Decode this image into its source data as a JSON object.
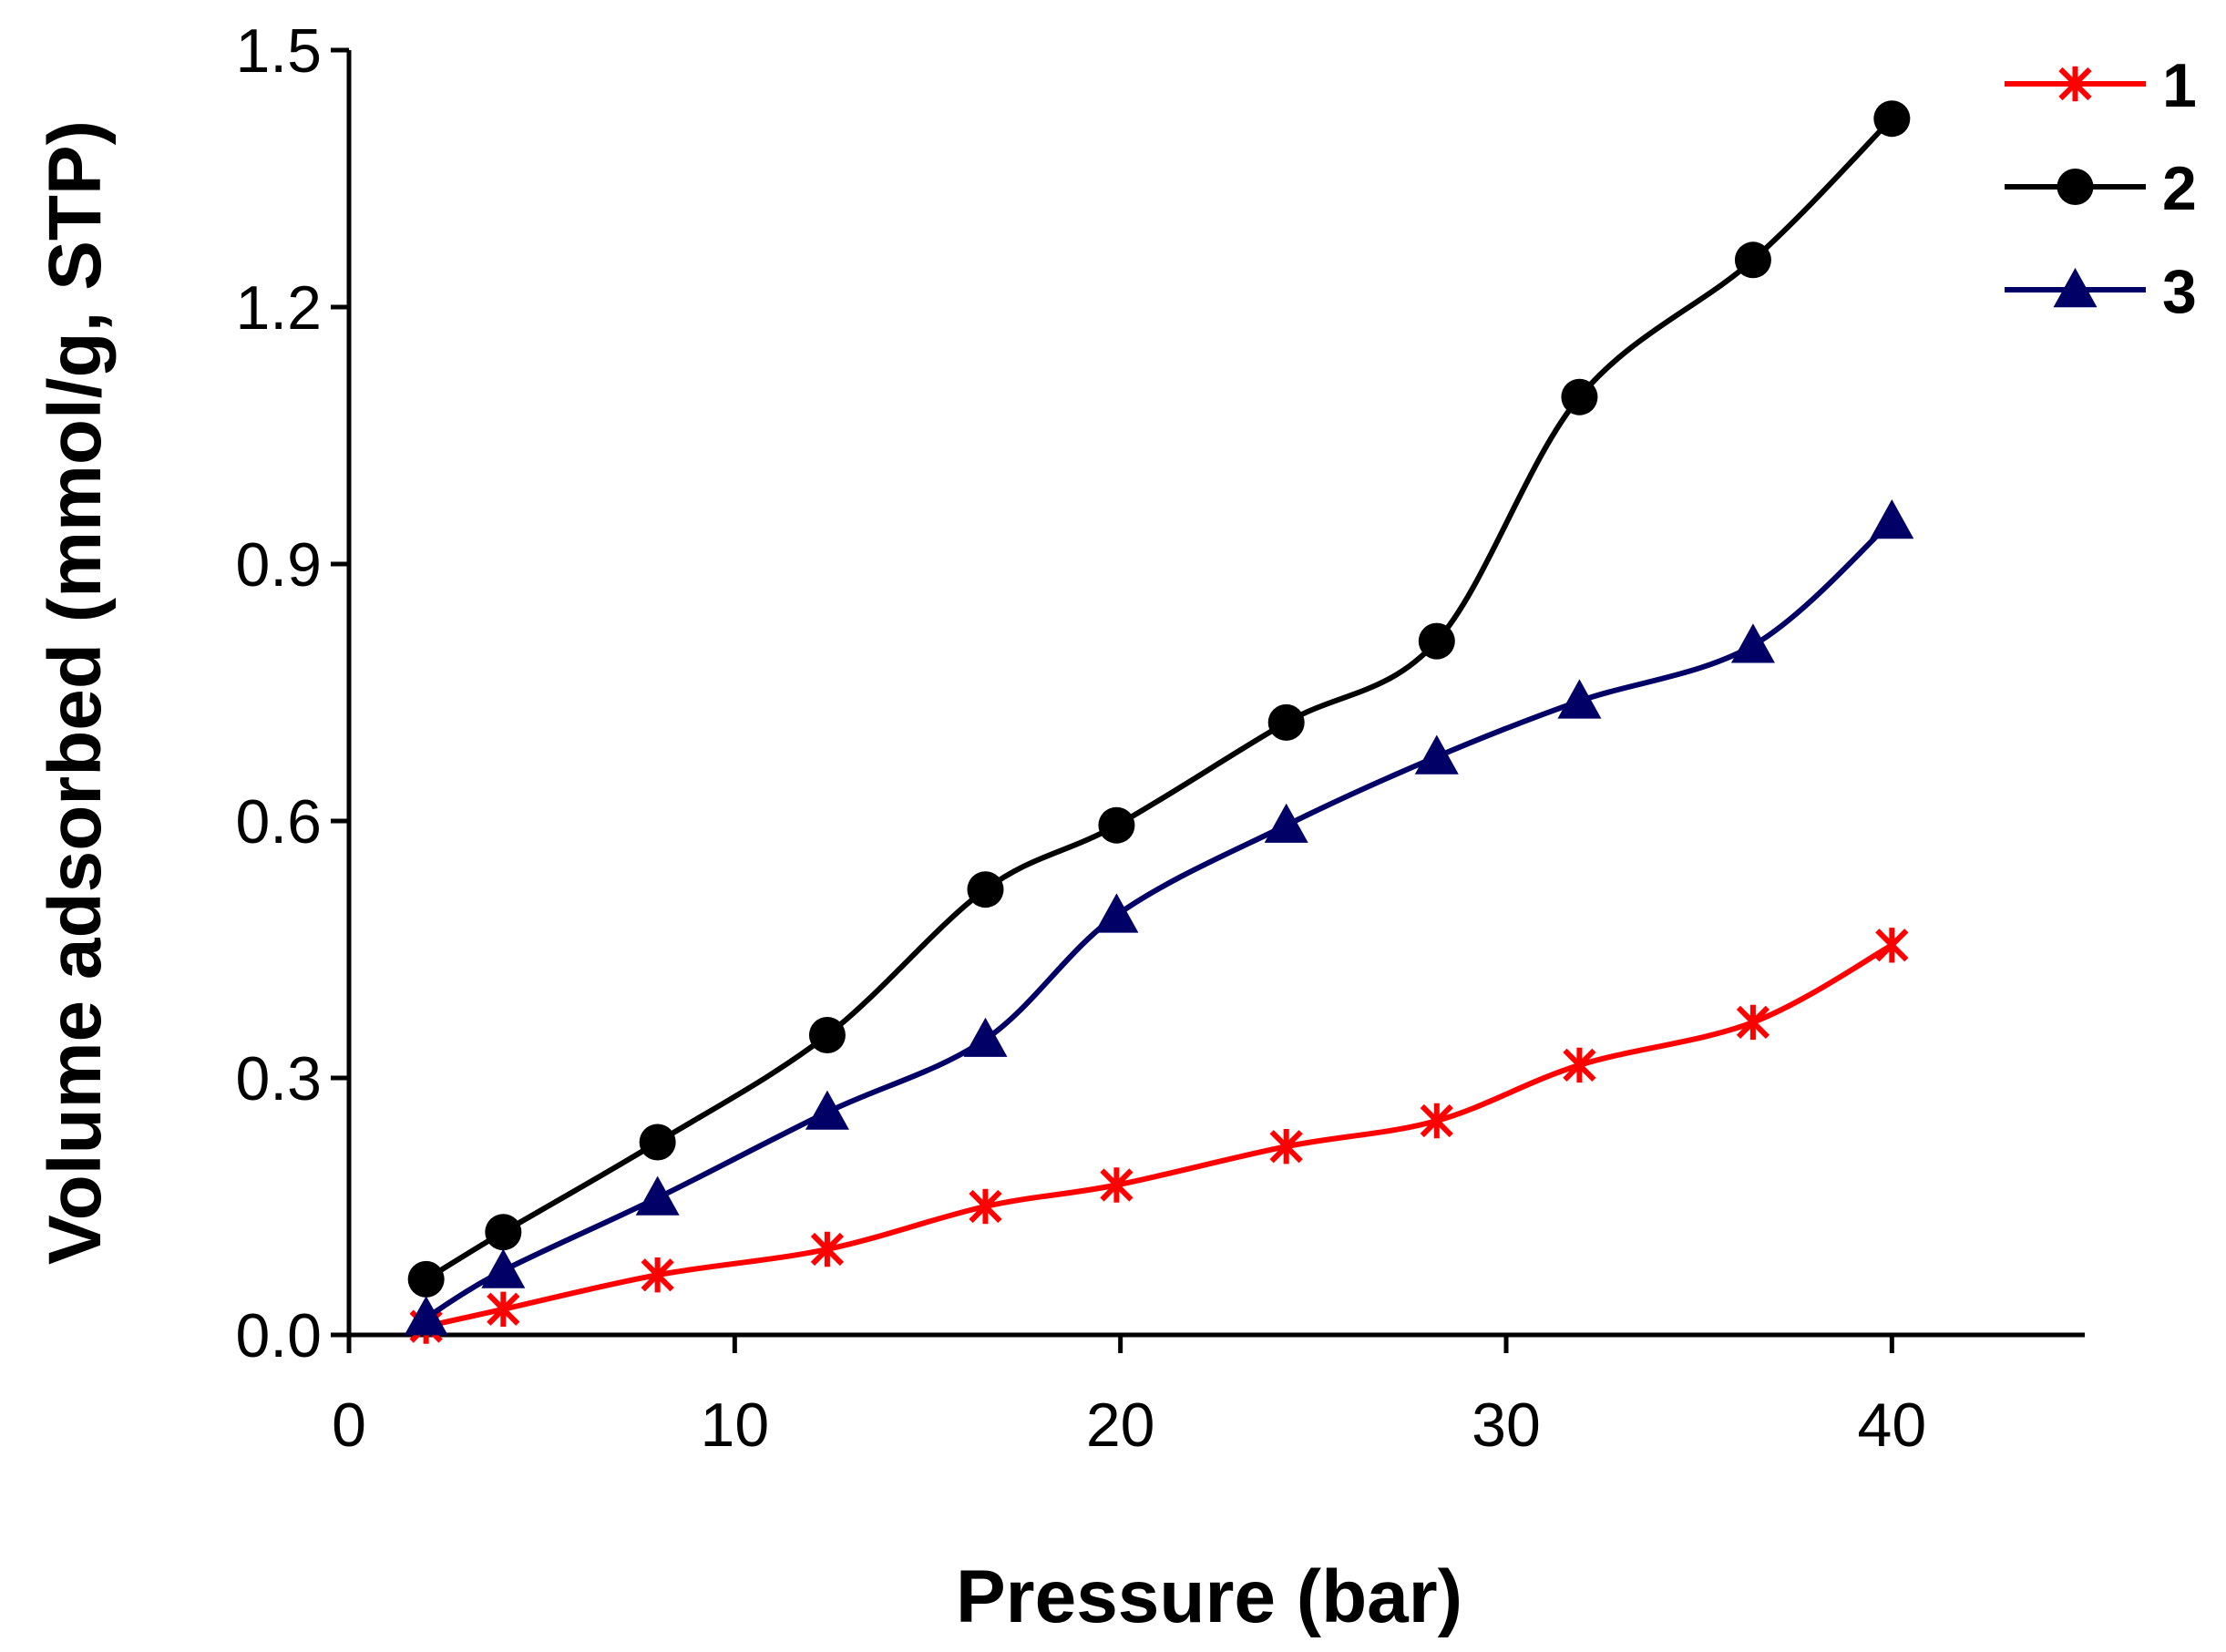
{
  "chart_data": {
    "type": "line",
    "title": "",
    "xlabel": "Pressure (bar)",
    "ylabel": "Volume adsorbed (mmol/g, STP)",
    "xlim": [
      0,
      45
    ],
    "ylim": [
      0,
      1.5
    ],
    "x_ticks": [
      0,
      10,
      20,
      30,
      40
    ],
    "x_tick_labels": [
      "0",
      "10",
      "20",
      "30",
      "40"
    ],
    "y_ticks": [
      0,
      0.3,
      0.6,
      0.9,
      1.2,
      1.5
    ],
    "y_tick_labels": [
      "0.0",
      "0.3",
      "0.6",
      "0.9",
      "1.2",
      "1.5"
    ],
    "grid": false,
    "legend_position": "top-right",
    "series": [
      {
        "name": "1",
        "color": "#ff0000",
        "marker": "asterisk",
        "x": [
          2,
          4,
          8,
          12.4,
          16.5,
          19.9,
          24.3,
          28.2,
          31.9,
          36.4,
          40
        ],
        "y": [
          0.01,
          0.03,
          0.07,
          0.1,
          0.15,
          0.175,
          0.22,
          0.25,
          0.315,
          0.365,
          0.455
        ]
      },
      {
        "name": "2",
        "color": "#000000",
        "marker": "circle",
        "x": [
          2,
          4,
          8,
          12.4,
          16.5,
          19.9,
          24.3,
          28.2,
          31.9,
          36.4,
          40
        ],
        "y": [
          0.065,
          0.12,
          0.225,
          0.35,
          0.52,
          0.595,
          0.715,
          0.81,
          1.095,
          1.255,
          1.42
        ]
      },
      {
        "name": "3",
        "color": "#000066",
        "marker": "triangle",
        "x": [
          2,
          4,
          8,
          12.4,
          16.5,
          19.9,
          24.3,
          28.2,
          31.9,
          36.4,
          40
        ],
        "y": [
          0.02,
          0.075,
          0.16,
          0.26,
          0.345,
          0.49,
          0.595,
          0.675,
          0.74,
          0.805,
          0.95
        ]
      }
    ]
  }
}
